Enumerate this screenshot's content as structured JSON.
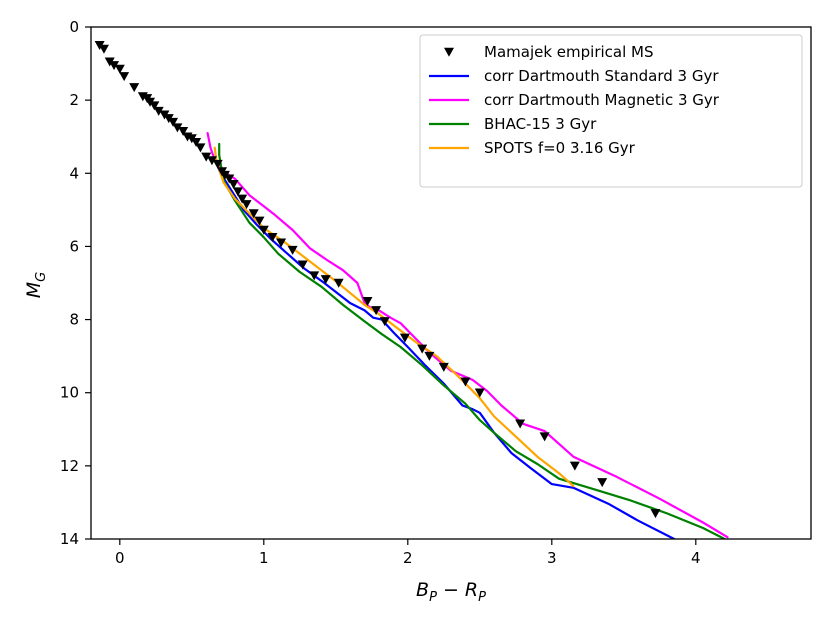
{
  "chart_data": {
    "type": "line",
    "title": "",
    "xlabel": {
      "main": "B",
      "sub1": "P",
      "minus": " − ",
      "main2": "R",
      "sub2": "P"
    },
    "ylabel": {
      "main": "M",
      "sub": "G"
    },
    "xlim": [
      -0.2,
      4.8
    ],
    "ylim": [
      14,
      0
    ],
    "x_ticks": [
      0,
      1,
      2,
      3,
      4
    ],
    "y_ticks": [
      0,
      2,
      4,
      6,
      8,
      10,
      12,
      14
    ],
    "grid": false,
    "legend_position": "top-right",
    "scatter": {
      "name": "Mamajek empirical MS",
      "marker": "triangle-down",
      "color": "#000000",
      "x": [
        -0.14,
        -0.11,
        -0.07,
        -0.04,
        0.0,
        0.03,
        0.1,
        0.16,
        0.19,
        0.21,
        0.24,
        0.27,
        0.31,
        0.34,
        0.37,
        0.4,
        0.44,
        0.47,
        0.5,
        0.53,
        0.56,
        0.6,
        0.64,
        0.68,
        0.71,
        0.73,
        0.76,
        0.79,
        0.82,
        0.85,
        0.88,
        0.93,
        0.97,
        1.0,
        1.06,
        1.12,
        1.2,
        1.27,
        1.35,
        1.43,
        1.52,
        1.72,
        1.78,
        1.84,
        1.98,
        2.1,
        2.15,
        2.25,
        2.4,
        2.5,
        2.78,
        2.95,
        3.16,
        3.35,
        3.72
      ],
      "y": [
        0.5,
        0.6,
        0.95,
        1.05,
        1.15,
        1.35,
        1.65,
        1.9,
        1.95,
        2.05,
        2.15,
        2.3,
        2.4,
        2.5,
        2.6,
        2.75,
        2.85,
        3.0,
        3.05,
        3.15,
        3.3,
        3.55,
        3.65,
        3.75,
        3.95,
        4.05,
        4.15,
        4.3,
        4.5,
        4.7,
        4.85,
        5.1,
        5.3,
        5.55,
        5.75,
        5.9,
        6.1,
        6.5,
        6.8,
        6.9,
        7.0,
        7.5,
        7.75,
        8.05,
        8.5,
        8.8,
        9.0,
        9.3,
        9.7,
        10.0,
        10.85,
        11.2,
        12.0,
        12.45,
        13.3
      ]
    },
    "series": [
      {
        "name": "corr Dartmouth Standard 3 Gyr",
        "color": "#0000ff",
        "x": [
          0.66,
          0.7,
          0.78,
          0.86,
          0.95,
          1.05,
          1.15,
          1.28,
          1.42,
          1.6,
          1.7,
          1.76,
          1.82,
          1.9,
          2.0,
          2.12,
          2.25,
          2.38,
          2.45,
          2.5,
          2.6,
          2.72,
          2.85,
          3.0,
          3.15,
          3.4,
          3.6,
          3.85
        ],
        "y": [
          3.6,
          4.0,
          4.5,
          5.0,
          5.4,
          5.8,
          6.15,
          6.6,
          7.0,
          7.55,
          7.75,
          7.95,
          8.0,
          8.35,
          8.75,
          9.25,
          9.75,
          10.35,
          10.45,
          10.55,
          11.1,
          11.65,
          12.05,
          12.5,
          12.6,
          13.05,
          13.5,
          14.0
        ]
      },
      {
        "name": "corr Dartmouth Magnetic 3 Gyr",
        "color": "#ff00ff",
        "x": [
          0.61,
          0.63,
          0.66,
          0.72,
          0.8,
          0.9,
          1.0,
          1.08,
          1.2,
          1.32,
          1.45,
          1.55,
          1.65,
          1.7,
          1.75,
          1.8,
          1.88,
          1.95,
          2.05,
          2.15,
          2.3,
          2.45,
          2.55,
          2.65,
          2.8,
          2.95,
          3.15,
          3.45,
          3.75,
          4.05,
          4.22
        ],
        "y": [
          2.9,
          3.3,
          3.65,
          3.95,
          4.15,
          4.6,
          4.9,
          5.15,
          5.55,
          6.05,
          6.4,
          6.65,
          7.0,
          7.55,
          7.7,
          7.75,
          7.95,
          8.1,
          8.5,
          8.9,
          9.4,
          9.65,
          9.95,
          10.35,
          10.85,
          11.05,
          11.75,
          12.3,
          12.9,
          13.55,
          13.95
        ]
      },
      {
        "name": "BHAC-15 3 Gyr",
        "color": "#008000",
        "x": [
          0.69,
          0.69,
          0.72,
          0.8,
          0.9,
          1.0,
          1.1,
          1.25,
          1.4,
          1.55,
          1.7,
          1.82,
          1.95,
          2.1,
          2.25,
          2.4,
          2.5,
          2.6,
          2.75,
          2.9,
          3.05,
          3.3,
          3.55,
          3.8,
          4.05,
          4.2
        ],
        "y": [
          3.2,
          3.5,
          4.2,
          4.75,
          5.35,
          5.75,
          6.2,
          6.7,
          7.1,
          7.6,
          8.05,
          8.4,
          8.75,
          9.25,
          9.8,
          10.3,
          10.75,
          11.1,
          11.6,
          11.95,
          12.35,
          12.65,
          12.95,
          13.3,
          13.7,
          14.0
        ]
      },
      {
        "name": "SPOTS f=0 3.16 Gyr",
        "color": "#ffa500",
        "x": [
          0.66,
          0.67,
          0.72,
          0.8,
          0.9,
          1.0,
          1.15,
          1.3,
          1.5,
          1.7,
          1.8,
          1.9,
          2.05,
          2.2,
          2.35,
          2.5,
          2.6,
          2.75,
          2.9,
          3.05,
          3.15
        ],
        "y": [
          3.3,
          3.65,
          4.25,
          4.7,
          5.1,
          5.5,
          5.9,
          6.35,
          6.95,
          7.6,
          7.85,
          8.15,
          8.6,
          9.0,
          9.55,
          10.15,
          10.65,
          11.2,
          11.75,
          12.2,
          12.55
        ]
      }
    ]
  }
}
